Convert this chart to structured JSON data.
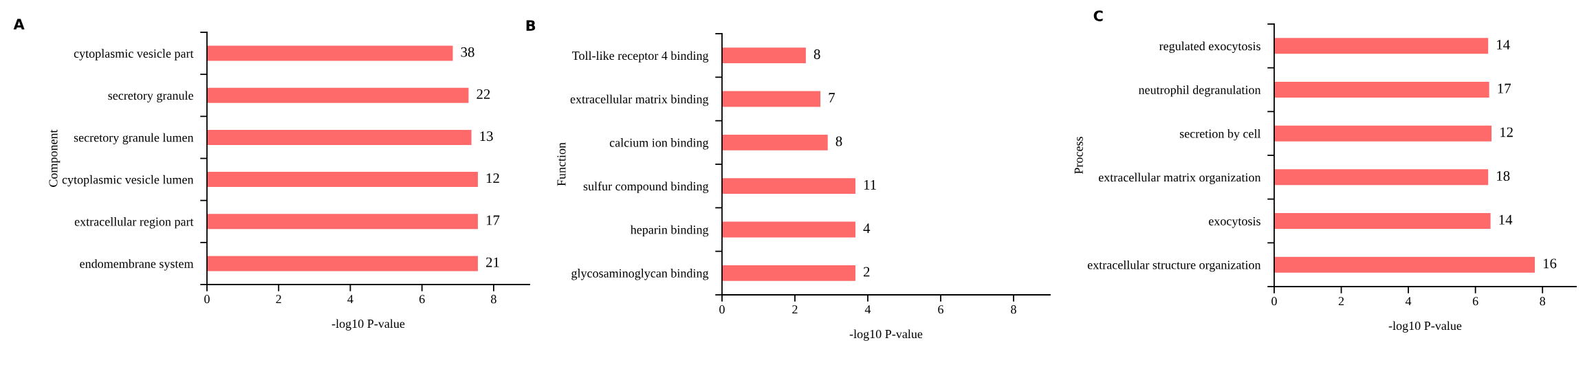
{
  "chart_data": [
    {
      "type": "bar",
      "orientation": "horizontal",
      "title": "A",
      "xlabel": "-log10 P-value",
      "ylabel": "Component",
      "categories": [
        "cytoplasmic vesicle part",
        "secretory granule",
        "secretory granule lumen",
        "cytoplasmic vesicle lumen",
        "extracellular region part",
        "endomembrane system"
      ],
      "values": [
        6.86,
        7.3,
        7.38,
        7.56,
        7.56,
        7.56
      ],
      "color": "#fe6a6a",
      "xlim": [
        0,
        9
      ],
      "xticks": [
        0,
        2,
        4,
        6,
        8
      ],
      "grid": false,
      "annotations": [
        {
          "text": "38",
          "x": 6.86,
          "y": "cytoplasmic vesicle part"
        },
        {
          "text": "22",
          "x": 7.3,
          "y": "secretory granule"
        },
        {
          "text": "13",
          "x": 7.38,
          "y": "secretory granule lumen"
        },
        {
          "text": "12",
          "x": 7.56,
          "y": "cytoplasmic vesicle lumen"
        },
        {
          "text": "17",
          "x": 7.56,
          "y": "extracellular region part"
        },
        {
          "text": "21",
          "x": 7.56,
          "y": "endomembrane system"
        }
      ]
    },
    {
      "type": "bar",
      "orientation": "horizontal",
      "title": "B",
      "xlabel": "-log10 P-value",
      "ylabel": "Function",
      "categories": [
        "Toll-like receptor 4 binding",
        "extracellular matrix binding",
        "calcium ion binding",
        "sulfur compound binding",
        "heparin binding",
        "glycosaminoglycan binding"
      ],
      "values": [
        2.3,
        2.7,
        2.9,
        3.66,
        3.66,
        3.66
      ],
      "color": "#fe6a6a",
      "xlim": [
        0,
        9
      ],
      "xticks": [
        0,
        2,
        4,
        6,
        8
      ],
      "grid": false,
      "annotations": [
        {
          "text": "8",
          "x": 2.3,
          "y": "Toll-like receptor 4 binding"
        },
        {
          "text": "7",
          "x": 2.7,
          "y": "extracellular matrix binding"
        },
        {
          "text": "8",
          "x": 2.9,
          "y": "calcium ion binding"
        },
        {
          "text": "11",
          "x": 3.66,
          "y": "sulfur compound binding"
        },
        {
          "text": "4",
          "x": 3.66,
          "y": "heparin binding"
        },
        {
          "text": "2",
          "x": 3.66,
          "y": "glycosaminoglycan binding"
        }
      ]
    },
    {
      "type": "bar",
      "orientation": "horizontal",
      "title": "C",
      "xlabel": "-log10 P-value",
      "ylabel": "Process",
      "categories": [
        "regulated exocytosis",
        "neutrophil degranulation",
        "secretion by cell",
        "extracellular matrix organization",
        "exocytosis",
        "extracellular structure organization"
      ],
      "values": [
        6.38,
        6.41,
        6.48,
        6.38,
        6.45,
        7.77
      ],
      "color": "#fe6a6a",
      "xlim": [
        0,
        9
      ],
      "xticks": [
        0,
        2,
        4,
        6,
        8
      ],
      "grid": false,
      "annotations": [
        {
          "text": "14",
          "x": 6.38,
          "y": "regulated exocytosis"
        },
        {
          "text": "17",
          "x": 6.41,
          "y": "neutrophil degranulation"
        },
        {
          "text": "12",
          "x": 6.48,
          "y": "secretion by cell"
        },
        {
          "text": "18",
          "x": 6.38,
          "y": "extracellular matrix organization"
        },
        {
          "text": "14",
          "x": 6.45,
          "y": "exocytosis"
        },
        {
          "text": "16",
          "x": 7.77,
          "y": "extracellular structure organization"
        }
      ]
    }
  ]
}
